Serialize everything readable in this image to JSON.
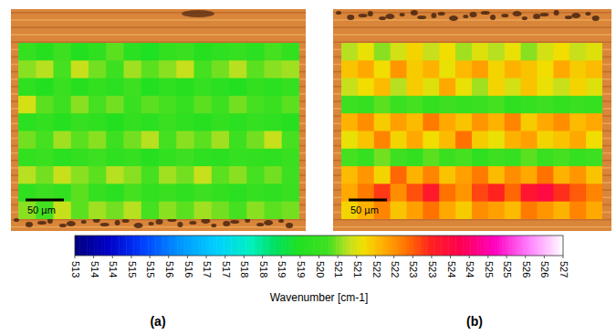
{
  "chart_data": {
    "type": "heatmap",
    "panels": [
      {
        "label": "(a)",
        "scale_bar": "50 µm",
        "cells": [
          [
            520.0,
            519.6,
            520.2,
            519.5,
            519.8,
            520.4,
            519.7,
            519.4,
            519.9,
            520.1,
            519.6,
            519.8,
            520.0,
            519.7,
            520.3,
            519.9
          ],
          [
            520.6,
            520.8,
            520.3,
            520.9,
            520.5,
            520.2,
            520.7,
            520.4,
            520.6,
            520.9,
            520.3,
            520.5,
            520.8,
            520.4,
            520.6,
            520.7
          ],
          [
            519.8,
            519.5,
            520.1,
            519.6,
            519.9,
            519.7,
            520.2,
            519.5,
            519.8,
            519.6,
            520.0,
            519.7,
            519.5,
            519.9,
            519.7,
            520.0
          ],
          [
            521.0,
            520.4,
            520.2,
            520.6,
            520.3,
            520.5,
            520.1,
            520.4,
            520.3,
            520.0,
            520.4,
            520.2,
            520.5,
            520.3,
            520.1,
            520.4
          ],
          [
            519.7,
            519.9,
            519.6,
            520.0,
            519.8,
            519.5,
            519.9,
            519.7,
            520.1,
            519.8,
            519.6,
            519.9,
            519.7,
            520.0,
            519.8,
            519.6
          ],
          [
            520.5,
            520.3,
            520.7,
            520.4,
            520.6,
            520.2,
            520.5,
            520.8,
            520.3,
            520.6,
            520.4,
            520.7,
            520.2,
            520.5,
            520.9,
            520.3
          ],
          [
            519.9,
            520.1,
            519.7,
            519.9,
            520.2,
            519.8,
            520.0,
            519.6,
            519.9,
            520.2,
            519.8,
            519.7,
            520.0,
            519.9,
            519.8,
            520.1
          ],
          [
            520.8,
            520.5,
            520.9,
            520.6,
            520.4,
            520.8,
            520.6,
            520.3,
            520.7,
            520.5,
            520.9,
            520.4,
            520.6,
            520.3,
            520.5,
            520.2
          ],
          [
            519.8,
            520.2,
            519.9,
            520.4,
            520.0,
            519.7,
            520.3,
            519.9,
            520.1,
            519.8,
            520.2,
            519.9,
            519.7,
            520.0,
            519.8,
            520.1
          ],
          [
            520.6,
            520.3,
            520.9,
            520.4,
            520.7,
            520.5,
            520.8,
            520.3,
            520.6,
            520.4,
            520.7,
            520.5,
            520.3,
            520.6,
            520.4,
            520.5
          ]
        ]
      },
      {
        "label": "(b)",
        "scale_bar": "50 µm",
        "cells": [
          [
            520.8,
            521.2,
            520.6,
            521.0,
            521.4,
            520.9,
            521.3,
            520.7,
            521.1,
            520.8,
            521.2,
            520.6,
            521.0,
            521.3,
            520.9,
            521.1
          ],
          [
            521.6,
            521.9,
            521.3,
            522.1,
            521.5,
            521.8,
            521.2,
            521.7,
            522.0,
            521.4,
            521.8,
            521.6,
            521.3,
            521.9,
            521.5,
            521.7
          ],
          [
            520.9,
            521.3,
            521.7,
            520.8,
            521.5,
            521.1,
            521.9,
            521.2,
            520.7,
            521.4,
            521.0,
            521.6,
            521.2,
            520.9,
            521.4,
            521.1
          ],
          [
            520.2,
            520.0,
            520.4,
            520.1,
            520.3,
            519.9,
            520.2,
            520.0,
            520.1,
            520.3,
            519.8,
            520.0,
            520.2,
            519.9,
            520.1,
            520.0
          ],
          [
            521.8,
            522.2,
            521.5,
            522.0,
            521.7,
            522.4,
            521.9,
            521.6,
            522.1,
            521.8,
            522.3,
            521.5,
            521.9,
            522.2,
            521.7,
            521.9
          ],
          [
            521.2,
            521.6,
            522.3,
            521.4,
            521.9,
            521.3,
            521.7,
            522.5,
            521.5,
            521.2,
            521.8,
            522.0,
            521.4,
            521.6,
            521.9,
            521.3
          ],
          [
            520.3,
            520.0,
            520.5,
            520.2,
            519.9,
            520.4,
            520.1,
            520.3,
            519.8,
            520.2,
            520.0,
            520.4,
            520.1,
            520.3,
            520.0,
            520.2
          ],
          [
            521.7,
            522.1,
            521.4,
            522.6,
            521.8,
            522.3,
            521.6,
            522.0,
            522.4,
            521.7,
            522.2,
            521.9,
            522.5,
            521.8,
            522.1,
            521.6
          ],
          [
            521.9,
            522.4,
            523.0,
            522.2,
            522.8,
            523.4,
            522.5,
            522.1,
            522.9,
            523.2,
            522.6,
            523.5,
            523.8,
            523.1,
            522.7,
            522.3
          ],
          [
            521.4,
            521.8,
            522.3,
            521.6,
            522.0,
            522.5,
            521.9,
            521.5,
            522.2,
            522.0,
            521.7,
            522.4,
            522.1,
            521.8,
            522.3,
            521.9
          ]
        ]
      }
    ],
    "colorbar": {
      "label": "Wavenumber [cm-1]",
      "range": [
        513,
        527
      ],
      "ticks": [
        513,
        {
          "value": 513.54,
          "label": "514"
        },
        {
          "value": 514.08,
          "label": "514"
        },
        {
          "value": 514.62,
          "label": "515"
        },
        {
          "value": 515.15,
          "label": "515"
        },
        {
          "value": 515.69,
          "label": "516"
        },
        {
          "value": 516.23,
          "label": "516"
        },
        {
          "value": 516.77,
          "label": "517"
        },
        {
          "value": 517.31,
          "label": "517"
        },
        {
          "value": 517.85,
          "label": "518"
        },
        {
          "value": 518.38,
          "label": "518"
        },
        {
          "value": 518.92,
          "label": "519"
        },
        {
          "value": 519.46,
          "label": "519"
        },
        520,
        {
          "value": 520.54,
          "label": "521"
        },
        {
          "value": 521.08,
          "label": "521"
        },
        {
          "value": 521.62,
          "label": "522"
        },
        {
          "value": 522.15,
          "label": "522"
        },
        {
          "value": 522.69,
          "label": "523"
        },
        {
          "value": 523.23,
          "label": "523"
        },
        {
          "value": 523.77,
          "label": "524"
        },
        {
          "value": 524.31,
          "label": "524"
        },
        {
          "value": 524.85,
          "label": "525"
        },
        {
          "value": 525.38,
          "label": "525"
        },
        {
          "value": 525.92,
          "label": "526"
        },
        {
          "value": 526.46,
          "label": "526"
        },
        527
      ]
    }
  }
}
